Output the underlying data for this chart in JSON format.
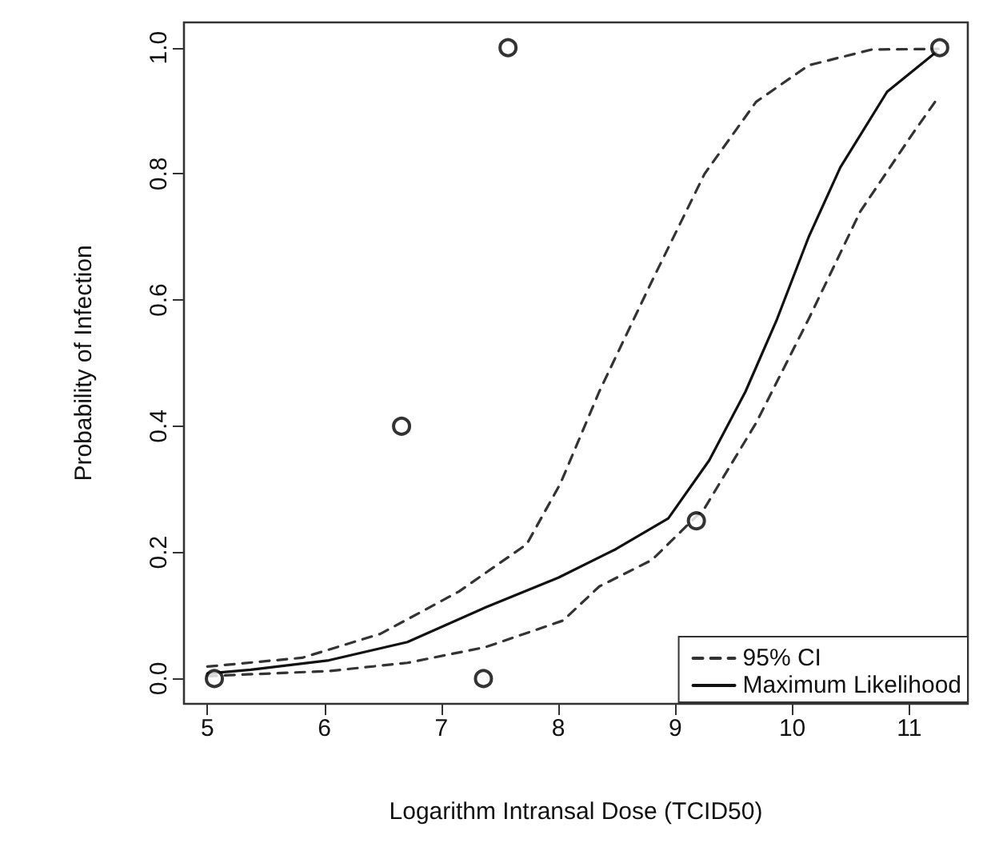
{
  "chart_data": {
    "type": "scatter",
    "xlabel": "Logarithm Intransal Dose (TCID50)",
    "ylabel": "Probability of Infection",
    "xlim": [
      4.8,
      11.5
    ],
    "xticks": [
      5,
      6,
      7,
      8,
      9,
      10,
      11
    ],
    "ylim": [
      -0.04,
      1.04
    ],
    "yticks": [
      {
        "value": 0,
        "label": "0.0"
      },
      {
        "value": 0.2,
        "label": "0.2"
      },
      {
        "value": 0.4,
        "label": "0.4"
      },
      {
        "value": 0.6,
        "label": "0.6"
      },
      {
        "value": 0.8,
        "label": "0.8"
      },
      {
        "value": 1,
        "label": "1.0"
      }
    ],
    "grid": false,
    "legend": "bottom right",
    "series": [
      {
        "type": "scatter",
        "color": "#000000",
        "marker": "circle",
        "x": [
          5.06,
          6.66,
          7.36,
          7.57,
          9.18,
          11.26
        ],
        "values": [
          0,
          0.4,
          0,
          1.0,
          0.25,
          1.0
        ]
      },
      {
        "type": "line",
        "name": "95% CI",
        "color": "#333333",
        "line_style": "dashed",
        "marker": "none",
        "x": [
          5.0,
          5.81,
          6.48,
          7.15,
          7.73,
          8.02,
          8.35,
          8.8,
          9.25,
          9.69,
          10.14,
          10.68,
          11.25
        ],
        "values": [
          0.019,
          0.033,
          0.071,
          0.138,
          0.213,
          0.31,
          0.455,
          0.63,
          0.8,
          0.914,
          0.972,
          0.997,
          0.998
        ]
      },
      {
        "type": "line",
        "color": "#333333",
        "line_style": "dashed",
        "marker": "none",
        "x": [
          5.0,
          6.04,
          6.71,
          7.38,
          8.04,
          8.35,
          8.8,
          9.25,
          9.69,
          10.14,
          10.58,
          11.03,
          11.25
        ],
        "values": [
          0.004,
          0.012,
          0.025,
          0.05,
          0.092,
          0.146,
          0.188,
          0.27,
          0.405,
          0.57,
          0.74,
          0.864,
          0.922
        ]
      },
      {
        "type": "line",
        "name": "Maximum Likelihood",
        "color": "#111111",
        "line_style": "solid",
        "marker": "none",
        "x": [
          5.0,
          5.37,
          6.04,
          6.71,
          7.38,
          8.0,
          8.49,
          8.94,
          9.29,
          9.6,
          9.87,
          10.14,
          10.41,
          10.81,
          11.23
        ],
        "values": [
          0.008,
          0.014,
          0.029,
          0.058,
          0.113,
          0.16,
          0.205,
          0.254,
          0.346,
          0.455,
          0.57,
          0.7,
          0.81,
          0.93,
          0.993
        ]
      }
    ]
  }
}
